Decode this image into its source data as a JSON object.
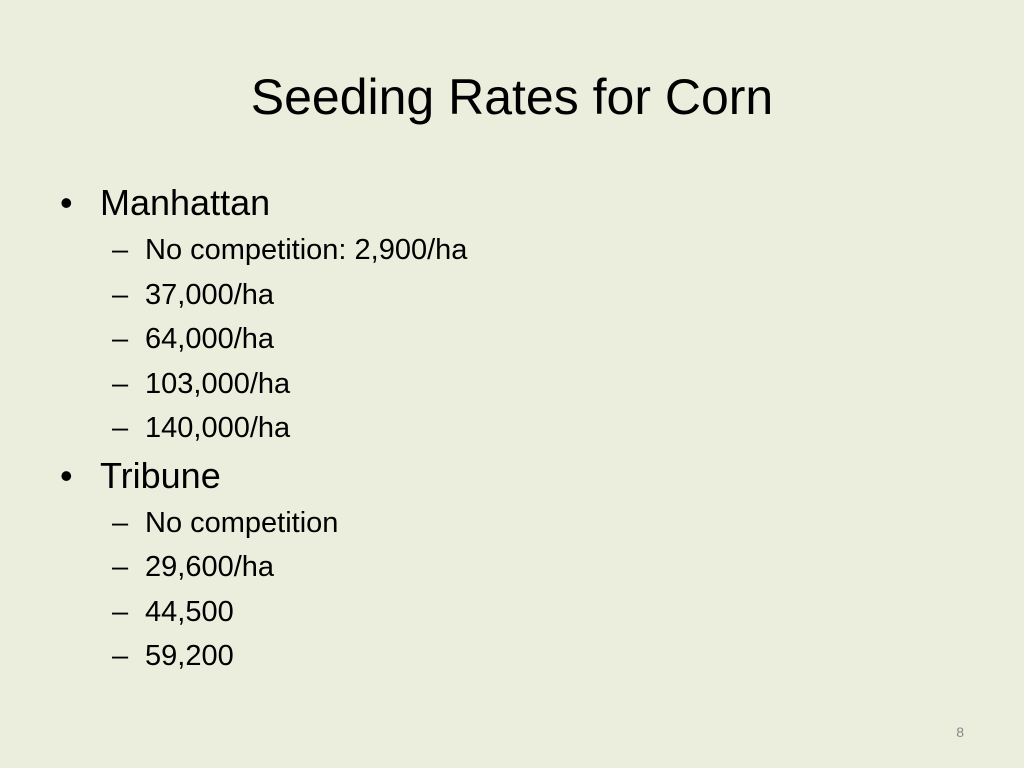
{
  "slide": {
    "title": "Seeding Rates for Corn",
    "bullet_symbol": "•",
    "dash_symbol": "–",
    "groups": [
      {
        "label": "Manhattan",
        "items": [
          "No competition: 2,900/ha",
          "37,000/ha",
          "64,000/ha",
          "103,000/ha",
          "140,000/ha"
        ]
      },
      {
        "label": "Tribune",
        "items": [
          "No competition",
          "29,600/ha",
          "44,500",
          "59,200"
        ]
      }
    ],
    "page_number": "8"
  }
}
